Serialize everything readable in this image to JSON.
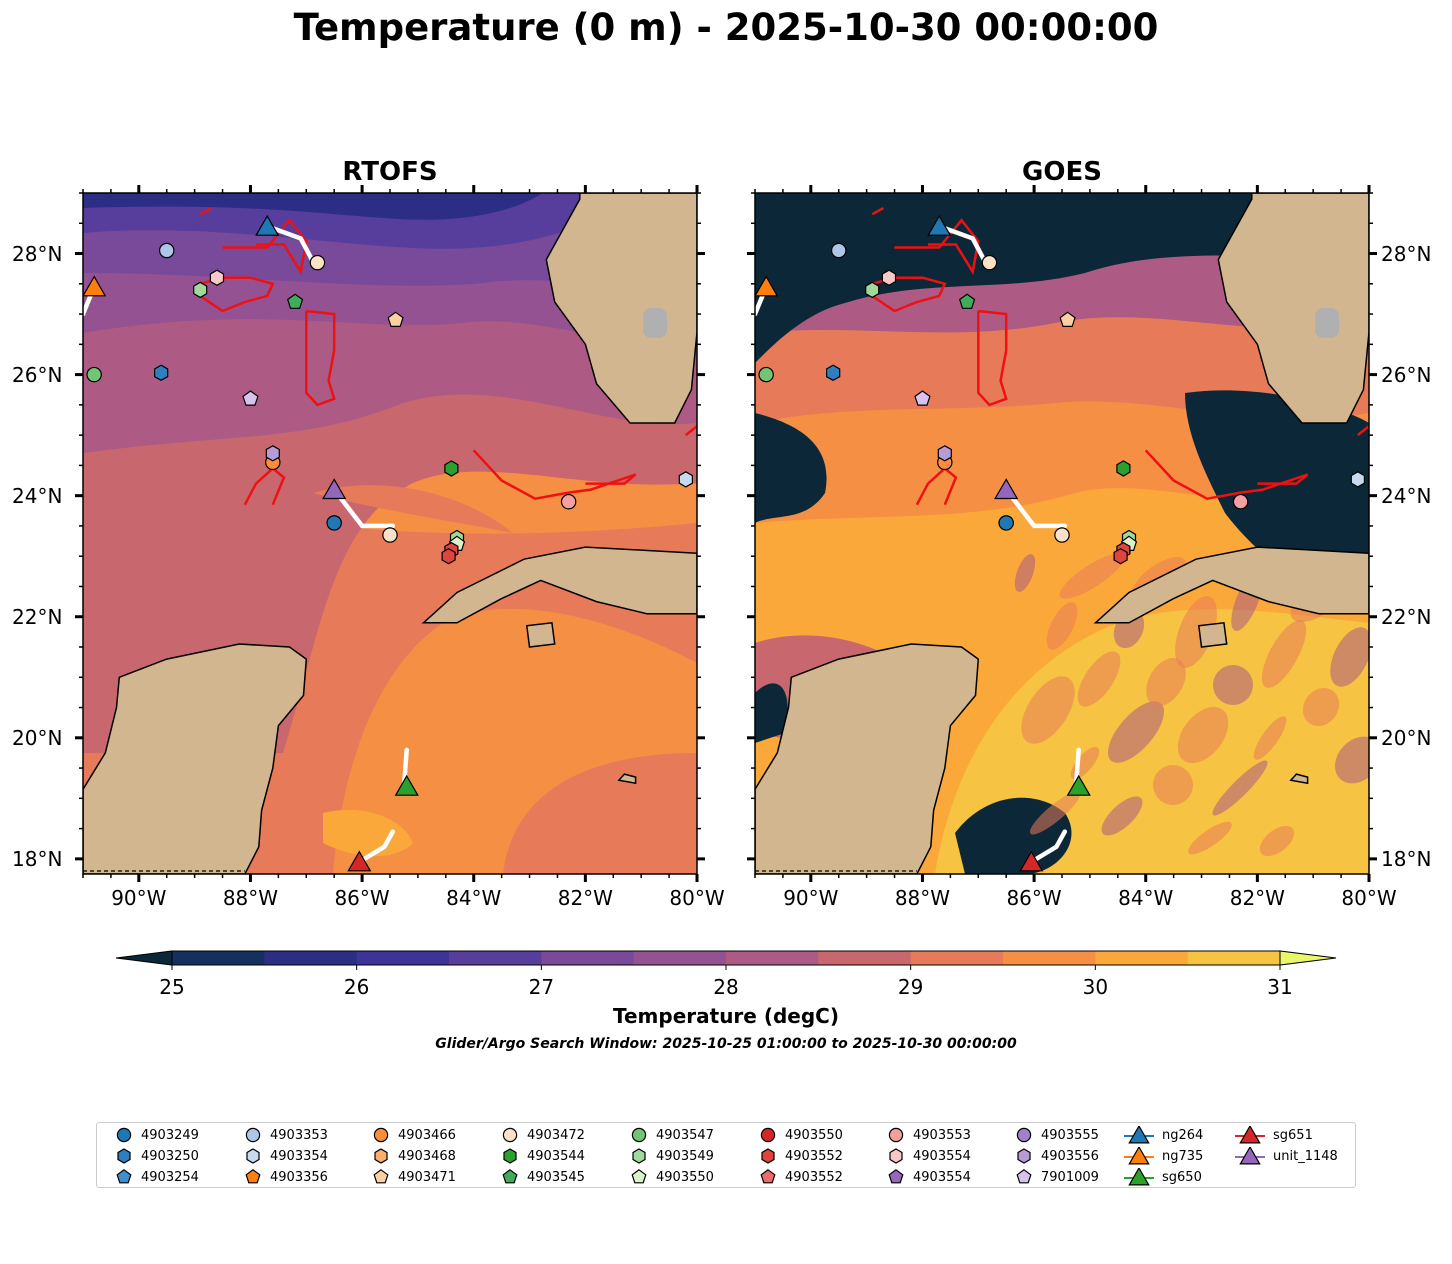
{
  "title": "Temperature (0 m) - 2025-10-30 00:00:00",
  "panels": [
    {
      "title": "RTOFS",
      "style": "model"
    },
    {
      "title": "GOES",
      "style": "satellite"
    }
  ],
  "map_extent": {
    "lon": [
      -91.0,
      -80.0
    ],
    "lat": [
      17.75,
      29.0
    ]
  },
  "lon_ticks": [
    "90°W",
    "88°W",
    "86°W",
    "84°W",
    "82°W",
    "80°W"
  ],
  "lat_ticks": [
    "28°N",
    "26°N",
    "24°N",
    "22°N",
    "20°N",
    "18°N"
  ],
  "colorbar": {
    "label": "Temperature (degC)",
    "ticks": [
      "25",
      "26",
      "27",
      "28",
      "29",
      "30",
      "31"
    ],
    "range": [
      25,
      31
    ],
    "step": 0.5,
    "colors": [
      "#0c2838",
      "#14305e",
      "#2c2e86",
      "#3e3399",
      "#573e9c",
      "#79499a",
      "#955292",
      "#ad5b84",
      "#c9676f",
      "#e77b59",
      "#f58f44",
      "#fba83a",
      "#f6c342",
      "#e9f76a"
    ]
  },
  "search_window": "Glider/Argo Search Window: 2025-10-25 01:00:00 to 2025-10-30 00:00:00",
  "land_color": "#d1b690",
  "legend": [
    {
      "label": "4903249",
      "marker": "circle",
      "color": "#1f77b4"
    },
    {
      "label": "4903250",
      "marker": "hexagon",
      "color": "#2e7fc0"
    },
    {
      "label": "4903254",
      "marker": "pentagon",
      "color": "#3d8fd0"
    },
    {
      "label": "4903353",
      "marker": "circle",
      "color": "#aec7e8"
    },
    {
      "label": "4903354",
      "marker": "hexagon",
      "color": "#c6dbef"
    },
    {
      "label": "4903356",
      "marker": "pentagon",
      "color": "#ff7f0e"
    },
    {
      "label": "4903466",
      "marker": "circle",
      "color": "#fd8d3c"
    },
    {
      "label": "4903468",
      "marker": "hexagon",
      "color": "#fdae6b"
    },
    {
      "label": "4903471",
      "marker": "pentagon",
      "color": "#fdd0a2"
    },
    {
      "label": "4903472",
      "marker": "circle",
      "color": "#fde0c8"
    },
    {
      "label": "4903544",
      "marker": "hexagon",
      "color": "#2ca02c"
    },
    {
      "label": "4903545",
      "marker": "pentagon",
      "color": "#41ab5d"
    },
    {
      "label": "4903547",
      "marker": "circle",
      "color": "#74c476"
    },
    {
      "label": "4903549",
      "marker": "hexagon",
      "color": "#a1d99b"
    },
    {
      "label": "4903550",
      "marker": "pentagon",
      "color": "#d9f2c8"
    },
    {
      "label": "4903550",
      "marker": "circle",
      "color": "#d62728"
    },
    {
      "label": "4903552",
      "marker": "hexagon",
      "color": "#e0443c"
    },
    {
      "label": "4903552",
      "marker": "pentagon",
      "color": "#ef6a6a"
    },
    {
      "label": "4903553",
      "marker": "circle",
      "color": "#f4a0a0"
    },
    {
      "label": "4903554",
      "marker": "hexagon",
      "color": "#fbc8c8"
    },
    {
      "label": "4903554",
      "marker": "pentagon",
      "color": "#9467bd"
    },
    {
      "label": "4903555",
      "marker": "circle",
      "color": "#a281cc"
    },
    {
      "label": "4903556",
      "marker": "hexagon",
      "color": "#b79bd9"
    },
    {
      "label": "7901009",
      "marker": "pentagon",
      "color": "#d6c3ee"
    },
    {
      "label": "ng264",
      "marker": "triangle",
      "color": "#1f77b4"
    },
    {
      "label": "ng735",
      "marker": "triangle",
      "color": "#ff7f0e"
    },
    {
      "label": "sg650",
      "marker": "triangle",
      "color": "#2ca02c"
    },
    {
      "label": "sg651",
      "marker": "triangle",
      "color": "#d62728"
    },
    {
      "label": "unit_1148",
      "marker": "triangle",
      "color": "#9467bd"
    }
  ],
  "argo_floats": [
    {
      "label": "4903249",
      "lon": -86.5,
      "lat": 23.55
    },
    {
      "label": "4903250",
      "lon": -89.6,
      "lat": 26.03
    },
    {
      "label": "4903353",
      "lon": -89.5,
      "lat": 28.05
    },
    {
      "label": "4903354",
      "lon": -80.2,
      "lat": 24.27
    },
    {
      "label": "4903466",
      "lon": -87.6,
      "lat": 24.55
    },
    {
      "label": "4903471",
      "lon": -85.4,
      "lat": 26.9
    },
    {
      "label": "4903472",
      "lon": -85.5,
      "lat": 23.35
    },
    {
      "label": "4903472",
      "lon": -86.8,
      "lat": 27.85
    },
    {
      "label": "4903545",
      "lon": -87.2,
      "lat": 27.2
    },
    {
      "label": "4903547",
      "lon": -90.8,
      "lat": 26.0
    },
    {
      "label": "4903544",
      "lon": -84.4,
      "lat": 24.45
    },
    {
      "label": "4903549",
      "lon": -84.3,
      "lat": 23.3
    },
    {
      "label": "4903550",
      "lon": -84.3,
      "lat": 23.2
    },
    {
      "label": "4903552",
      "lon": -84.4,
      "lat": 23.1
    },
    {
      "label": "4903552",
      "lon": -84.45,
      "lat": 23.0
    },
    {
      "label": "4903553",
      "lon": -82.3,
      "lat": 23.9
    },
    {
      "label": "4903554",
      "lon": -88.6,
      "lat": 27.6
    },
    {
      "label": "4903556",
      "lon": -87.6,
      "lat": 24.7
    },
    {
      "label": "7901009",
      "lon": -88.0,
      "lat": 25.6
    },
    {
      "label": "4903549",
      "lon": -88.9,
      "lat": 27.4
    }
  ],
  "gliders": [
    {
      "label": "ng264",
      "lon": -87.7,
      "lat": 28.45,
      "track": [
        [
          -87.7,
          28.45
        ],
        [
          -87.1,
          28.25
        ],
        [
          -86.9,
          27.9
        ]
      ]
    },
    {
      "label": "ng735",
      "lon": -90.8,
      "lat": 27.45,
      "track": [
        [
          -90.8,
          27.45
        ],
        [
          -91.0,
          27.0
        ]
      ]
    },
    {
      "label": "sg650",
      "lon": -85.2,
      "lat": 19.2,
      "track": [
        [
          -85.2,
          19.8
        ],
        [
          -85.25,
          19.2
        ]
      ]
    },
    {
      "label": "sg651",
      "lon": -86.05,
      "lat": 17.95,
      "track": [
        [
          -86.05,
          17.95
        ],
        [
          -85.6,
          18.2
        ],
        [
          -85.45,
          18.45
        ]
      ]
    },
    {
      "label": "unit_1148",
      "lon": -86.5,
      "lat": 24.1,
      "track": [
        [
          -86.5,
          24.1
        ],
        [
          -86.0,
          23.5
        ],
        [
          -85.45,
          23.5
        ]
      ]
    }
  ],
  "red_contours": [
    [
      [
        -88.9,
        27.5
      ],
      [
        -88.5,
        27.6
      ],
      [
        -88.0,
        27.6
      ],
      [
        -87.6,
        27.5
      ],
      [
        -87.7,
        27.3
      ],
      [
        -88.1,
        27.2
      ],
      [
        -88.5,
        27.05
      ],
      [
        -88.9,
        27.3
      ],
      [
        -88.9,
        27.5
      ]
    ],
    [
      [
        -88.5,
        28.1
      ],
      [
        -87.7,
        28.1
      ],
      [
        -87.3,
        28.55
      ],
      [
        -87.0,
        28.2
      ],
      [
        -87.1,
        27.7
      ],
      [
        -87.4,
        28.15
      ],
      [
        -87.9,
        28.15
      ]
    ],
    [
      [
        -87.0,
        27.05
      ],
      [
        -86.5,
        27.0
      ],
      [
        -86.5,
        26.4
      ],
      [
        -86.6,
        25.9
      ],
      [
        -86.5,
        25.6
      ],
      [
        -86.8,
        25.5
      ],
      [
        -87.0,
        25.7
      ],
      [
        -87.0,
        26.3
      ],
      [
        -87.0,
        27.05
      ]
    ],
    [
      [
        -88.1,
        23.85
      ],
      [
        -87.9,
        24.2
      ],
      [
        -87.6,
        24.45
      ],
      [
        -87.4,
        24.3
      ],
      [
        -87.6,
        23.85
      ]
    ],
    [
      [
        -84.0,
        24.75
      ],
      [
        -83.5,
        24.25
      ],
      [
        -82.9,
        23.95
      ],
      [
        -82.3,
        24.05
      ],
      [
        -81.9,
        24.1
      ],
      [
        -81.1,
        24.35
      ],
      [
        -81.3,
        24.2
      ],
      [
        -82.0,
        24.2
      ]
    ],
    [
      [
        -88.9,
        28.65
      ],
      [
        -88.7,
        28.75
      ]
    ],
    [
      [
        -80.2,
        25.0
      ],
      [
        -80.0,
        25.15
      ]
    ]
  ],
  "land": [
    [
      [
        -91.0,
        19.15
      ],
      [
        -90.6,
        19.75
      ],
      [
        -90.4,
        20.5
      ],
      [
        -90.35,
        21.0
      ],
      [
        -89.5,
        21.3
      ],
      [
        -88.2,
        21.55
      ],
      [
        -87.3,
        21.5
      ],
      [
        -87.0,
        21.3
      ],
      [
        -87.05,
        20.7
      ],
      [
        -87.5,
        20.2
      ],
      [
        -87.6,
        19.5
      ],
      [
        -87.8,
        18.8
      ],
      [
        -87.85,
        18.2
      ],
      [
        -88.1,
        17.75
      ],
      [
        -91.0,
        17.75
      ]
    ],
    [
      [
        -82.1,
        28.9
      ],
      [
        -82.7,
        27.9
      ],
      [
        -82.55,
        27.2
      ],
      [
        -82.0,
        26.5
      ],
      [
        -81.8,
        25.85
      ],
      [
        -81.2,
        25.2
      ],
      [
        -80.4,
        25.2
      ],
      [
        -80.1,
        25.75
      ],
      [
        -80.0,
        26.7
      ],
      [
        -80.0,
        29.0
      ],
      [
        -82.1,
        29.0
      ]
    ],
    [
      [
        -84.9,
        21.9
      ],
      [
        -84.3,
        22.4
      ],
      [
        -83.1,
        22.95
      ],
      [
        -82.0,
        23.15
      ],
      [
        -81.0,
        23.1
      ],
      [
        -80.0,
        23.05
      ],
      [
        -80.0,
        22.05
      ],
      [
        -80.9,
        22.05
      ],
      [
        -81.8,
        22.25
      ],
      [
        -82.8,
        22.6
      ],
      [
        -83.5,
        22.3
      ],
      [
        -84.3,
        21.9
      ],
      [
        -84.9,
        21.9
      ]
    ],
    [
      [
        -83.05,
        21.85
      ],
      [
        -82.6,
        21.9
      ],
      [
        -82.55,
        21.55
      ],
      [
        -83.0,
        21.5
      ]
    ],
    [
      [
        -81.3,
        19.4
      ],
      [
        -81.1,
        19.35
      ],
      [
        -81.1,
        19.25
      ],
      [
        -81.4,
        19.3
      ]
    ]
  ]
}
